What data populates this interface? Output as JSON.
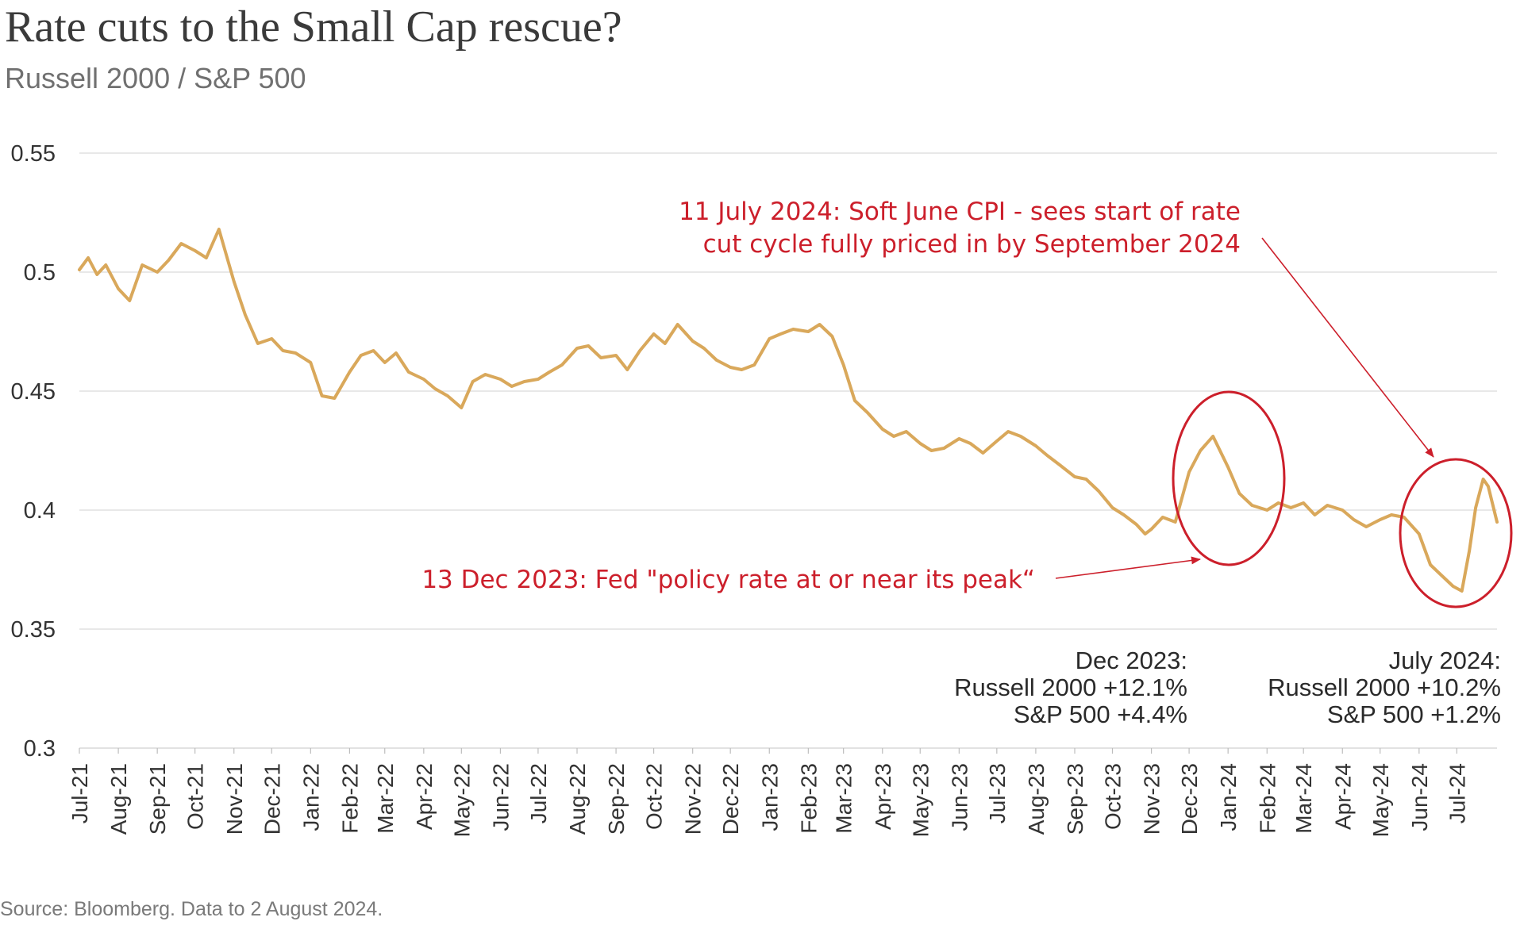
{
  "header": {
    "title": "Rate cuts to the Small Cap rescue?",
    "subtitle": "Russell 2000 / S&P 500"
  },
  "footer": {
    "source": "Source: Bloomberg. Data to 2 August 2024."
  },
  "colors": {
    "line": "#d9a85b",
    "annotation": "#cc1f2b",
    "grid": "#d9d9d9"
  },
  "chart_data": {
    "type": "line",
    "title": "Rate cuts to the Small Cap rescue?",
    "subtitle": "Russell 2000 / S&P 500",
    "ylim": [
      0.3,
      0.55
    ],
    "y_ticks": [
      "0.55",
      "0.5",
      "0.45",
      "0.4",
      "0.35",
      "0.3"
    ],
    "x_range": [
      "2021-07-01",
      "2024-08-02"
    ],
    "x_ticks": [
      "Jul-21",
      "Aug-21",
      "Sep-21",
      "Oct-21",
      "Nov-21",
      "Dec-21",
      "Jan-22",
      "Feb-22",
      "Mar-22",
      "Apr-22",
      "May-22",
      "Jun-22",
      "Jul-22",
      "Aug-22",
      "Sep-22",
      "Oct-22",
      "Nov-22",
      "Dec-22",
      "Jan-23",
      "Feb-23",
      "Mar-23",
      "Apr-23",
      "May-23",
      "Jun-23",
      "Jul-23",
      "Aug-23",
      "Sep-23",
      "Oct-23",
      "Nov-23",
      "Dec-23",
      "Jan-24",
      "Feb-24",
      "Mar-24",
      "Apr-24",
      "May-24",
      "Jun-24",
      "Jul-24"
    ],
    "grid": "horizontal",
    "series": [
      {
        "x": [
          "2021-07-01",
          "2021-07-08",
          "2021-07-15",
          "2021-07-22",
          "2021-08-01",
          "2021-08-10",
          "2021-08-20",
          "2021-09-01",
          "2021-09-10",
          "2021-09-20",
          "2021-10-01",
          "2021-10-10",
          "2021-10-20",
          "2021-11-01",
          "2021-11-10",
          "2021-11-20",
          "2021-12-01",
          "2021-12-10",
          "2021-12-20",
          "2022-01-01",
          "2022-01-10",
          "2022-01-20",
          "2022-02-01",
          "2022-02-10",
          "2022-02-20",
          "2022-03-01",
          "2022-03-10",
          "2022-03-20",
          "2022-04-01",
          "2022-04-10",
          "2022-04-20",
          "2022-05-01",
          "2022-05-10",
          "2022-05-20",
          "2022-06-01",
          "2022-06-10",
          "2022-06-20",
          "2022-07-01",
          "2022-07-10",
          "2022-07-20",
          "2022-08-01",
          "2022-08-10",
          "2022-08-20",
          "2022-09-01",
          "2022-09-10",
          "2022-09-20",
          "2022-10-01",
          "2022-10-10",
          "2022-10-20",
          "2022-11-01",
          "2022-11-10",
          "2022-11-20",
          "2022-12-01",
          "2022-12-10",
          "2022-12-20",
          "2023-01-01",
          "2023-01-10",
          "2023-01-20",
          "2023-02-01",
          "2023-02-10",
          "2023-02-20",
          "2023-03-01",
          "2023-03-10",
          "2023-03-20",
          "2023-04-01",
          "2023-04-10",
          "2023-04-20",
          "2023-05-01",
          "2023-05-10",
          "2023-05-20",
          "2023-06-01",
          "2023-06-10",
          "2023-06-20",
          "2023-07-01",
          "2023-07-10",
          "2023-07-20",
          "2023-08-01",
          "2023-08-10",
          "2023-08-20",
          "2023-09-01",
          "2023-09-10",
          "2023-09-20",
          "2023-10-01",
          "2023-10-10",
          "2023-10-20",
          "2023-10-27",
          "2023-11-01",
          "2023-11-10",
          "2023-11-20",
          "2023-12-01",
          "2023-12-10",
          "2023-12-20",
          "2024-01-01",
          "2024-01-10",
          "2024-01-20",
          "2024-02-01",
          "2024-02-10",
          "2024-02-20",
          "2024-03-01",
          "2024-03-10",
          "2024-03-20",
          "2024-04-01",
          "2024-04-10",
          "2024-04-20",
          "2024-05-01",
          "2024-05-10",
          "2024-05-20",
          "2024-06-01",
          "2024-06-10",
          "2024-06-20",
          "2024-06-28",
          "2024-07-05",
          "2024-07-11",
          "2024-07-16",
          "2024-07-22",
          "2024-07-26",
          "2024-08-02"
        ],
        "y": [
          0.501,
          0.506,
          0.499,
          0.503,
          0.493,
          0.488,
          0.503,
          0.5,
          0.505,
          0.512,
          0.509,
          0.506,
          0.518,
          0.496,
          0.482,
          0.47,
          0.472,
          0.467,
          0.466,
          0.462,
          0.448,
          0.447,
          0.458,
          0.465,
          0.467,
          0.462,
          0.466,
          0.458,
          0.455,
          0.451,
          0.448,
          0.443,
          0.454,
          0.457,
          0.455,
          0.452,
          0.454,
          0.455,
          0.458,
          0.461,
          0.468,
          0.469,
          0.464,
          0.465,
          0.459,
          0.467,
          0.474,
          0.47,
          0.478,
          0.471,
          0.468,
          0.463,
          0.46,
          0.459,
          0.461,
          0.472,
          0.474,
          0.476,
          0.475,
          0.478,
          0.473,
          0.461,
          0.446,
          0.441,
          0.434,
          0.431,
          0.433,
          0.428,
          0.425,
          0.426,
          0.43,
          0.428,
          0.424,
          0.429,
          0.433,
          0.431,
          0.427,
          0.423,
          0.419,
          0.414,
          0.413,
          0.408,
          0.401,
          0.398,
          0.394,
          0.39,
          0.392,
          0.397,
          0.395,
          0.416,
          0.425,
          0.431,
          0.418,
          0.407,
          0.402,
          0.4,
          0.403,
          0.401,
          0.403,
          0.398,
          0.402,
          0.4,
          0.396,
          0.393,
          0.396,
          0.398,
          0.397,
          0.39,
          0.377,
          0.372,
          0.368,
          0.366,
          0.383,
          0.401,
          0.413,
          0.41,
          0.395
        ]
      }
    ]
  },
  "annotations": {
    "july2024_note_line1": "11 July 2024: Soft June CPI - sees start of rate",
    "july2024_note_line2": "cut cycle fully priced in by September 2024",
    "dec2023_note": "13 Dec 2023: Fed \"policy rate at or near its peak“",
    "dec2023_stats": [
      "Dec 2023:",
      "Russell 2000 +12.1%",
      "S&P 500 +4.4%"
    ],
    "july2024_stats": [
      "July 2024:",
      "Russell 2000 +10.2%",
      "S&P 500 +1.2%"
    ]
  }
}
